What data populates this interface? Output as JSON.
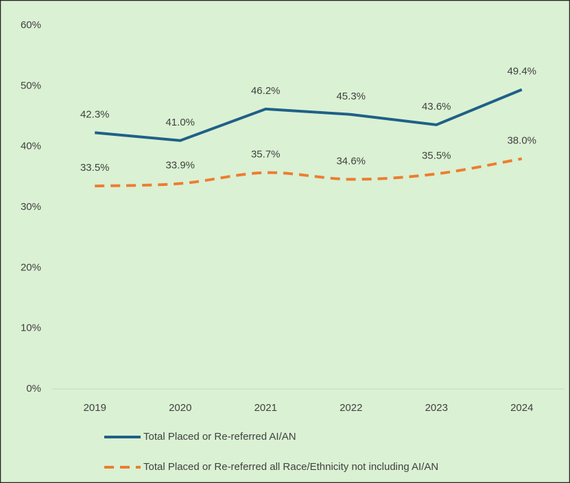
{
  "chart_data": {
    "type": "line",
    "categories": [
      "2019",
      "2020",
      "2021",
      "2022",
      "2023",
      "2024"
    ],
    "series": [
      {
        "name": "Total Placed or Re-referred AI/AN",
        "color": "#1f6088",
        "dash": false,
        "smooth": false,
        "values": [
          42.3,
          41.0,
          46.2,
          45.3,
          43.6,
          49.4
        ],
        "value_labels": [
          "42.3%",
          "41.0%",
          "46.2%",
          "45.3%",
          "43.6%",
          "49.4%"
        ]
      },
      {
        "name": "Total Placed or Re-referred all Race/Ethnicity not including AI/AN",
        "color": "#ed7d31",
        "dash": true,
        "smooth": true,
        "values": [
          33.5,
          33.9,
          35.7,
          34.6,
          35.5,
          38.0
        ],
        "value_labels": [
          "33.5%",
          "33.9%",
          "35.7%",
          "34.6%",
          "35.5%",
          "38.0%"
        ]
      }
    ],
    "ylim": [
      0,
      60
    ],
    "yticks": [
      {
        "value": 0,
        "label": "0%"
      },
      {
        "value": 10,
        "label": "10%"
      },
      {
        "value": 20,
        "label": "20%"
      },
      {
        "value": 30,
        "label": "30%"
      },
      {
        "value": 40,
        "label": "40%"
      },
      {
        "value": 50,
        "label": "50%"
      },
      {
        "value": 60,
        "label": "60%"
      }
    ],
    "grid": false,
    "legend": "bottom"
  }
}
